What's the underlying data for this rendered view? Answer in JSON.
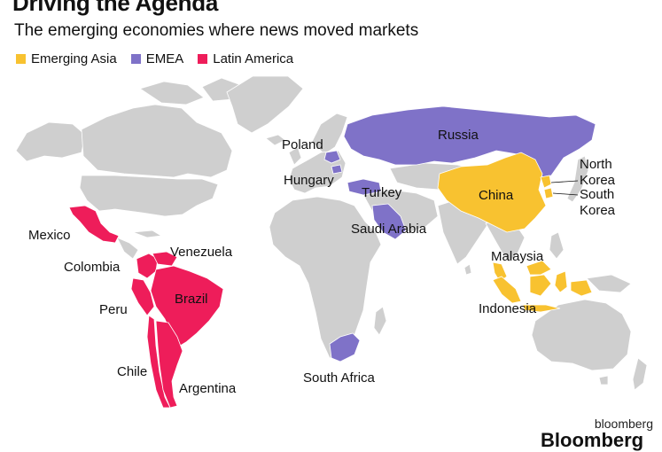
{
  "title": "Driving the Agenda",
  "subtitle": "The emerging economies where news moved markets",
  "legend": [
    {
      "label": "Emerging Asia",
      "color": "#f8c230"
    },
    {
      "label": "EMEA",
      "color": "#7f72c8"
    },
    {
      "label": "Latin America",
      "color": "#ee1d5a"
    }
  ],
  "colors": {
    "land": "#cfcfcf",
    "border": "#ffffff",
    "ocean": "#ffffff"
  },
  "countries": {
    "russia": "Russia",
    "poland": "Poland",
    "hungary": "Hungary",
    "turkey": "Turkey",
    "saudi_arabia": "Saudi Arabia",
    "south_africa": "South Africa",
    "china": "China",
    "north_korea_1": "North",
    "north_korea_2": "Korea",
    "south_korea_1": "South",
    "south_korea_2": "Korea",
    "malaysia": "Malaysia",
    "indonesia": "Indonesia",
    "mexico": "Mexico",
    "colombia": "Colombia",
    "venezuela": "Venezuela",
    "peru": "Peru",
    "brazil": "Brazil",
    "chile": "Chile",
    "argentina": "Argentina"
  },
  "credit": "bloomberg",
  "brand_cut": "Bloomberg"
}
